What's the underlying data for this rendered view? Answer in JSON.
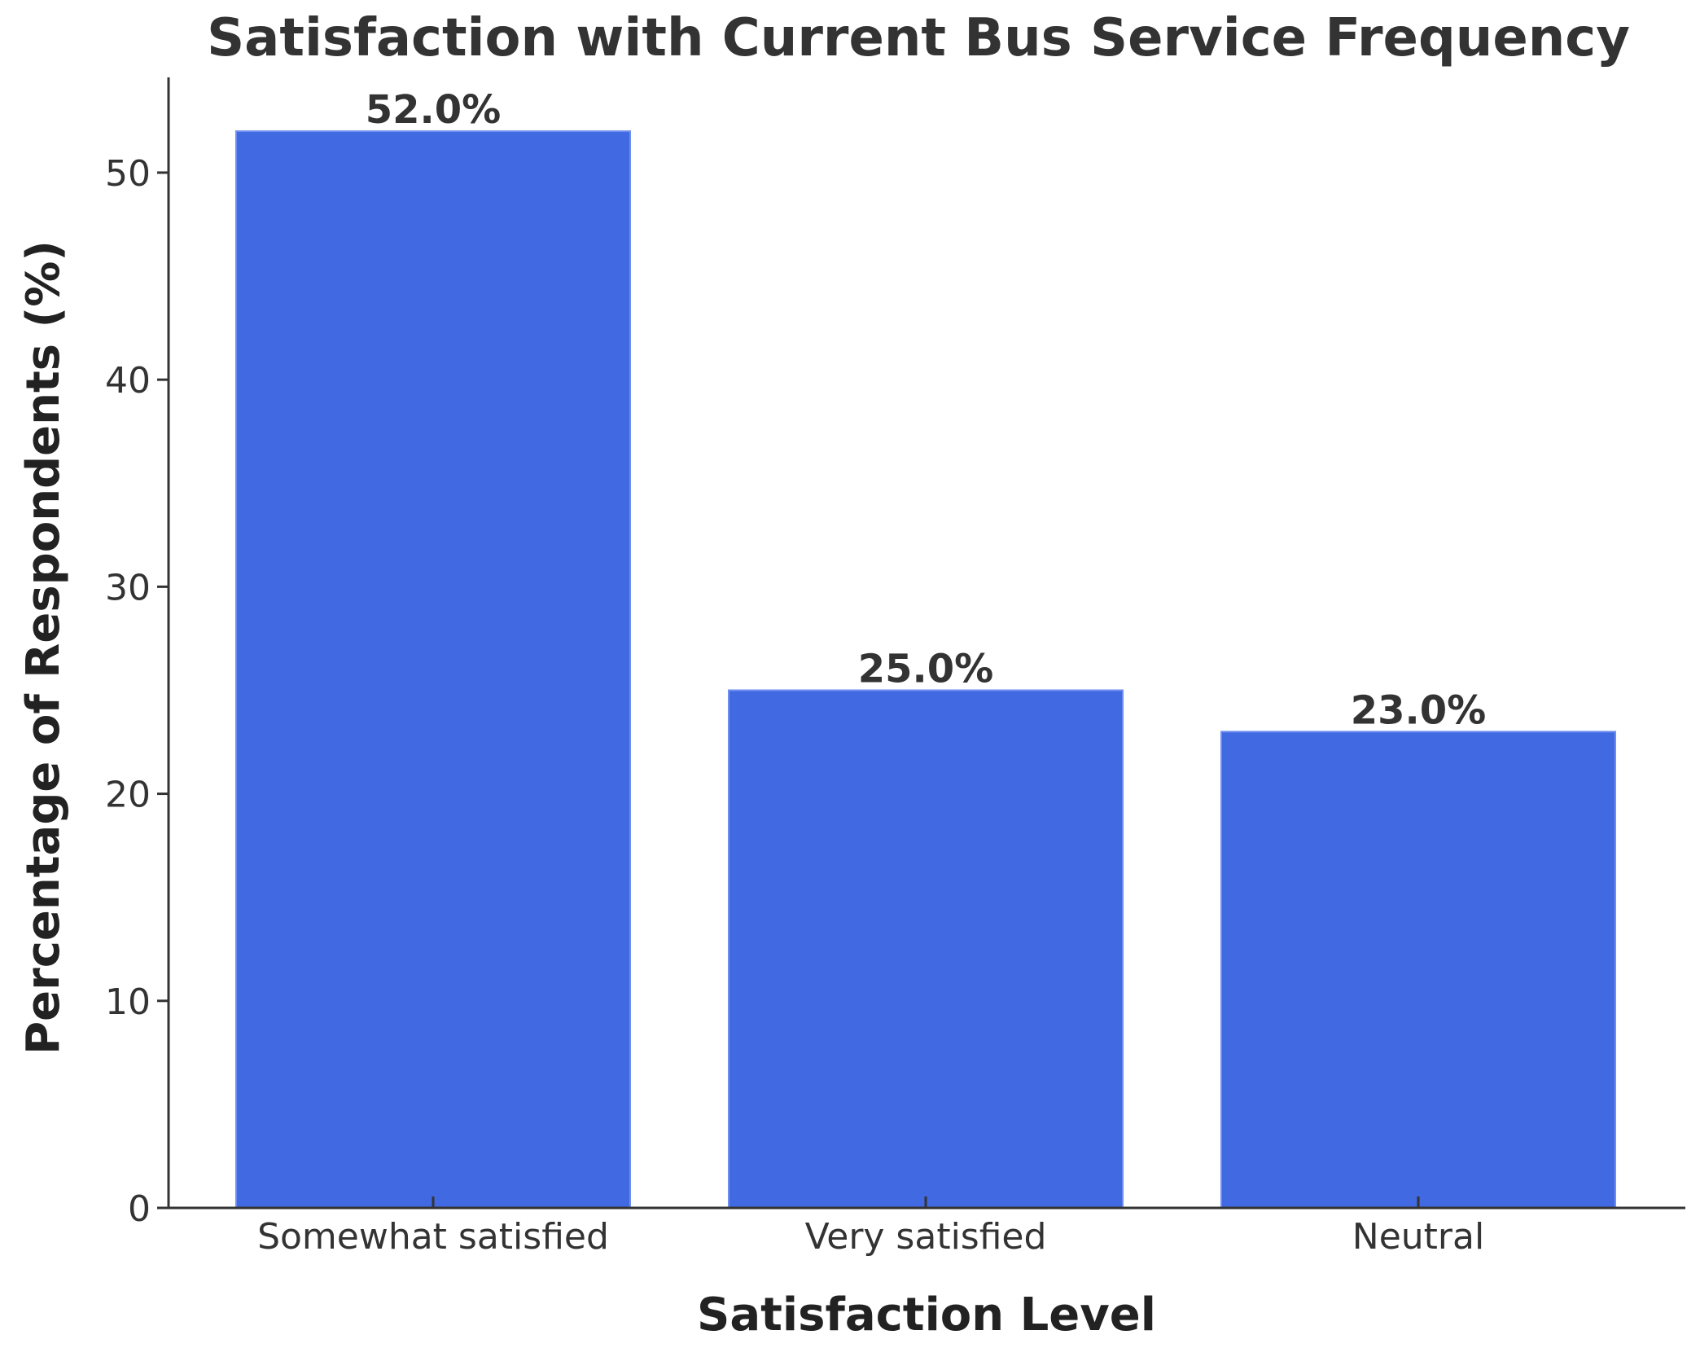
{
  "chart_data": {
    "type": "bar",
    "title": "Satisfaction with Current Bus Service Frequency",
    "xlabel": "Satisfaction Level",
    "ylabel": "Percentage of Respondents (%)",
    "categories": [
      "Somewhat satisfied",
      "Very satisfied",
      "Neutral"
    ],
    "values": [
      52.0,
      25.0,
      23.0
    ],
    "value_labels": [
      "52.0%",
      "25.0%",
      "23.0%"
    ],
    "yticks": [
      0,
      10,
      20,
      30,
      40,
      50
    ],
    "ylim": [
      0,
      54.6
    ],
    "grid": false,
    "bar_color": "#4169E1",
    "axis_color": "#333333",
    "text_color": "#333333"
  }
}
